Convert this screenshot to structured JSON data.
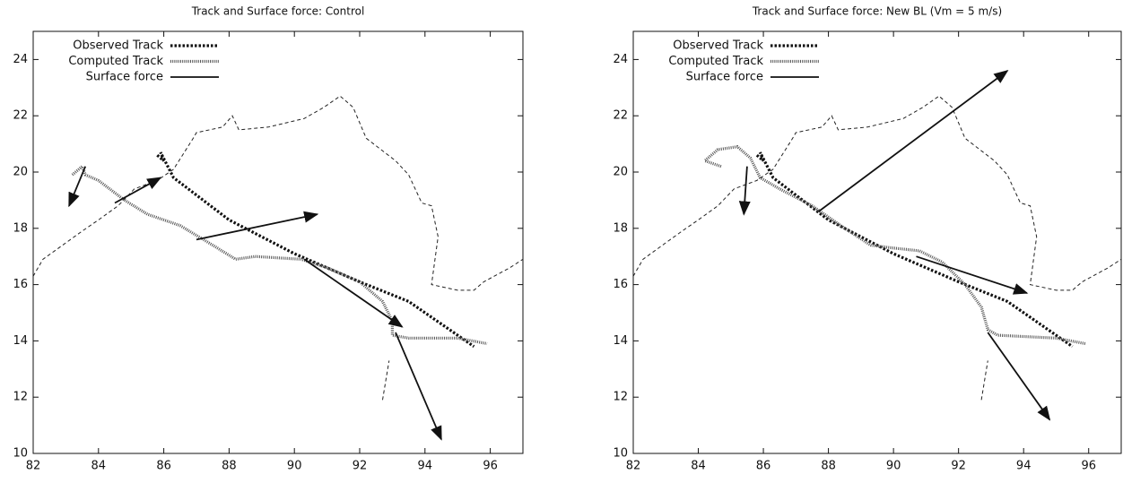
{
  "chart_data": [
    {
      "type": "line",
      "title": "Track and Surface force: Control",
      "xlim": [
        82,
        97
      ],
      "ylim": [
        10,
        25
      ],
      "xticks": [
        82,
        84,
        86,
        88,
        90,
        92,
        94,
        96
      ],
      "yticks": [
        10,
        12,
        14,
        16,
        18,
        20,
        22,
        24
      ],
      "legend": "upper-left",
      "outline": {
        "x": [
          82.0,
          82.3,
          82.9,
          83.5,
          84.0,
          84.6,
          85.1,
          85.8,
          86.3,
          86.9,
          87.0,
          87.8,
          88.1,
          88.3,
          89.2,
          90.3,
          90.9,
          91.4,
          91.8,
          92.2,
          93.1,
          93.5,
          93.7,
          93.9,
          94.2,
          94.4,
          94.2,
          95.0,
          95.5,
          95.8,
          96.6,
          97.0,
          null,
          92.7,
          92.9
        ],
        "y": [
          16.3,
          16.9,
          17.4,
          17.9,
          18.3,
          18.8,
          19.4,
          19.7,
          20.1,
          21.2,
          21.4,
          21.6,
          22.0,
          21.5,
          21.6,
          21.9,
          22.3,
          22.7,
          22.3,
          21.2,
          20.4,
          19.9,
          19.4,
          18.9,
          18.8,
          17.7,
          16.0,
          15.8,
          15.8,
          16.1,
          16.6,
          16.9,
          null,
          11.9,
          13.3
        ]
      },
      "series": [
        {
          "name": "Observed Track",
          "style": "observed",
          "color": "#111111",
          "x": [
            85.8,
            86.0,
            85.9,
            86.3,
            88.0,
            90.0,
            92.0,
            93.5,
            95.5
          ],
          "y": [
            20.6,
            20.4,
            20.7,
            19.8,
            18.3,
            17.1,
            16.1,
            15.4,
            13.8
          ]
        },
        {
          "name": "Computed Track",
          "style": "computed",
          "color": "#555555",
          "x": [
            83.2,
            83.5,
            83.6,
            84.0,
            84.8,
            85.5,
            86.5,
            87.5,
            88.2,
            88.8,
            90.2,
            91.0,
            92.0,
            92.7,
            93.0,
            93.0,
            93.5,
            95.0,
            95.9
          ],
          "y": [
            19.9,
            20.2,
            19.9,
            19.7,
            19.0,
            18.5,
            18.1,
            17.4,
            16.9,
            17.0,
            16.9,
            16.6,
            16.1,
            15.4,
            14.7,
            14.2,
            14.1,
            14.1,
            13.9
          ]
        },
        {
          "name": "Surface force",
          "style": "arrow",
          "color": "#111111",
          "x": [
            83.6,
            83.1,
            null,
            84.5,
            85.9,
            null,
            87.0,
            90.7,
            null,
            90.3,
            93.3,
            null,
            93.1,
            94.5
          ],
          "y": [
            20.2,
            18.8,
            null,
            18.9,
            19.8,
            null,
            17.6,
            18.5,
            null,
            16.9,
            14.5,
            null,
            14.3,
            10.5
          ]
        }
      ]
    },
    {
      "type": "line",
      "title": "Track and Surface force: New BL (Vm = 5 m/s)",
      "xlim": [
        82,
        97
      ],
      "ylim": [
        10,
        25
      ],
      "xticks": [
        82,
        84,
        86,
        88,
        90,
        92,
        94,
        96
      ],
      "yticks": [
        10,
        12,
        14,
        16,
        18,
        20,
        22,
        24
      ],
      "legend": "upper-left",
      "outline": {
        "x": [
          82.0,
          82.3,
          82.9,
          83.5,
          84.0,
          84.6,
          85.1,
          85.8,
          86.3,
          86.9,
          87.0,
          87.8,
          88.1,
          88.3,
          89.2,
          90.3,
          90.9,
          91.4,
          91.8,
          92.2,
          93.1,
          93.5,
          93.7,
          93.9,
          94.2,
          94.4,
          94.2,
          95.0,
          95.5,
          95.8,
          96.6,
          97.0,
          null,
          92.7,
          92.9
        ],
        "y": [
          16.3,
          16.9,
          17.4,
          17.9,
          18.3,
          18.8,
          19.4,
          19.7,
          20.1,
          21.2,
          21.4,
          21.6,
          22.0,
          21.5,
          21.6,
          21.9,
          22.3,
          22.7,
          22.3,
          21.2,
          20.4,
          19.9,
          19.4,
          18.9,
          18.8,
          17.7,
          16.0,
          15.8,
          15.8,
          16.1,
          16.6,
          16.9,
          null,
          11.9,
          13.3
        ]
      },
      "series": [
        {
          "name": "Observed Track",
          "style": "observed",
          "color": "#111111",
          "x": [
            85.8,
            86.0,
            85.9,
            86.3,
            88.0,
            90.0,
            92.0,
            93.5,
            95.5
          ],
          "y": [
            20.6,
            20.4,
            20.7,
            19.8,
            18.3,
            17.1,
            16.1,
            15.4,
            13.8
          ]
        },
        {
          "name": "Computed Track",
          "style": "computed",
          "color": "#555555",
          "x": [
            84.7,
            84.2,
            84.6,
            85.2,
            85.6,
            85.9,
            86.5,
            87.5,
            88.5,
            89.3,
            90.0,
            90.8,
            91.5,
            92.2,
            92.7,
            92.9,
            93.2,
            95.0,
            95.9
          ],
          "y": [
            20.2,
            20.4,
            20.8,
            20.9,
            20.5,
            19.8,
            19.4,
            18.8,
            18.0,
            17.4,
            17.3,
            17.2,
            16.8,
            16.0,
            15.2,
            14.4,
            14.2,
            14.1,
            13.9
          ]
        },
        {
          "name": "Surface force",
          "style": "arrow",
          "color": "#111111",
          "x": [
            85.5,
            85.4,
            null,
            87.7,
            93.5,
            null,
            90.7,
            94.1,
            null,
            92.9,
            94.8
          ],
          "y": [
            20.2,
            18.5,
            null,
            18.6,
            23.6,
            null,
            17.0,
            15.7,
            null,
            14.3,
            11.2
          ]
        }
      ]
    }
  ]
}
